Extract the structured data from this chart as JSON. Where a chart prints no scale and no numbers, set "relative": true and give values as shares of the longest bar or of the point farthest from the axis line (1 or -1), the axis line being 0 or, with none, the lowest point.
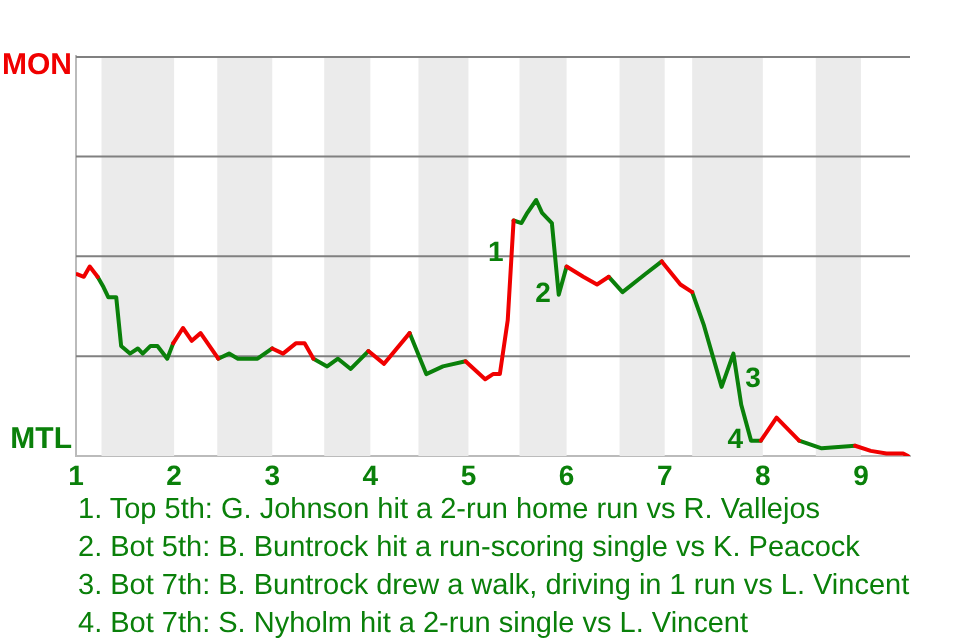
{
  "chart_data": {
    "type": "line",
    "relative": true,
    "xlim": [
      1,
      9.5
    ],
    "xticks": [
      1,
      2,
      3,
      4,
      5,
      6,
      7,
      8,
      9
    ],
    "marker": "none",
    "line_style": "solid",
    "ref_lines": [
      {
        "axis": "y",
        "value": 0.39,
        "color": "#808080"
      },
      {
        "axis": "y",
        "value": 0.78,
        "color": "#808080"
      },
      {
        "axis": "y",
        "value": 1.17,
        "color": "#808080"
      }
    ],
    "bands": [
      {
        "axis": "x",
        "from": 1.26,
        "to": 2,
        "color": "#ebebeb"
      },
      {
        "axis": "x",
        "from": 2.44,
        "to": 3,
        "color": "#ebebeb"
      },
      {
        "axis": "x",
        "from": 3.53,
        "to": 4,
        "color": "#ebebeb"
      },
      {
        "axis": "x",
        "from": 4.49,
        "to": 5,
        "color": "#ebebeb"
      },
      {
        "axis": "x",
        "from": 5.52,
        "to": 6,
        "color": "#ebebeb"
      },
      {
        "axis": "x",
        "from": 6.54,
        "to": 7,
        "color": "#ebebeb"
      },
      {
        "axis": "x",
        "from": 7.28,
        "to": 8,
        "color": "#ebebeb"
      },
      {
        "axis": "x",
        "from": 8.54,
        "to": 9,
        "color": "#ebebeb"
      }
    ],
    "series": [
      {
        "x": [
          1.01,
          1.08,
          1.14,
          1.22,
          1.28,
          1.33,
          1.41,
          1.46,
          1.55,
          1.63,
          1.68,
          1.76,
          1.83,
          1.93,
          1.99,
          2.09,
          2.18,
          2.27,
          2.45,
          2.56,
          2.65,
          2.85,
          3.0,
          3.11,
          3.24,
          3.33,
          3.42,
          3.56,
          3.67,
          3.8,
          3.98,
          4.14,
          4.4,
          4.57,
          4.74,
          4.97,
          5.17,
          5.25,
          5.32,
          5.4,
          5.46,
          5.54,
          5.6,
          5.69,
          5.75,
          5.85,
          5.92,
          6.0,
          6.17,
          6.31,
          6.43,
          6.57,
          6.8,
          6.97,
          7.16,
          7.28,
          7.4,
          7.58,
          7.7,
          7.78,
          7.88,
          7.98,
          8.14,
          8.37,
          8.6,
          8.94,
          9.1,
          9.26,
          9.43,
          9.48
        ],
        "color": "#f00000",
        "values": [
          0.71,
          0.7,
          0.74,
          0.7,
          null,
          null,
          null,
          null,
          null,
          null,
          null,
          null,
          null,
          null,
          0.44,
          0.5,
          0.45,
          0.48,
          0.38,
          null,
          null,
          null,
          0.42,
          0.4,
          0.44,
          0.44,
          0.38,
          null,
          null,
          null,
          0.41,
          0.36,
          0.48,
          null,
          null,
          0.37,
          0.3,
          0.32,
          0.32,
          0.53,
          0.92,
          null,
          null,
          null,
          null,
          null,
          null,
          0.74,
          0.7,
          0.67,
          0.7,
          null,
          null,
          0.76,
          0.67,
          0.64,
          null,
          null,
          null,
          null,
          null,
          0.06,
          0.15,
          0.06,
          null,
          0.04,
          0.02,
          0.01,
          0.01,
          0
        ]
      },
      {
        "x": [
          1.22,
          1.28,
          1.33,
          1.41,
          1.46,
          1.55,
          1.63,
          1.68,
          1.76,
          1.83,
          1.93,
          1.99,
          2.09,
          2.18,
          2.27,
          2.45,
          2.56,
          2.65,
          2.85,
          3.0,
          3.11,
          3.24,
          3.33,
          3.42,
          3.56,
          3.67,
          3.8,
          3.98,
          4.14,
          4.4,
          4.57,
          4.74,
          4.97,
          5.17,
          5.25,
          5.32,
          5.4,
          5.46,
          5.54,
          5.6,
          5.69,
          5.75,
          5.85,
          5.92,
          6.0,
          6.17,
          6.31,
          6.43,
          6.57,
          6.8,
          6.97,
          7.16,
          7.28,
          7.4,
          7.58,
          7.7,
          7.78,
          7.88,
          7.98,
          8.14,
          8.37,
          8.6,
          8.94
        ],
        "color": "#0a800a",
        "values": [
          0.7,
          0.66,
          0.62,
          0.62,
          0.43,
          0.4,
          0.42,
          0.4,
          0.43,
          0.43,
          0.38,
          0.44,
          null,
          null,
          null,
          0.38,
          0.4,
          0.38,
          0.38,
          0.42,
          null,
          null,
          null,
          0.38,
          0.35,
          0.38,
          0.34,
          0.41,
          null,
          0.48,
          0.32,
          0.35,
          0.37,
          null,
          null,
          null,
          null,
          0.92,
          0.91,
          0.95,
          1,
          0.95,
          0.91,
          0.63,
          0.74,
          null,
          null,
          0.7,
          0.64,
          0.71,
          0.76,
          null,
          0.64,
          0.51,
          0.27,
          0.4,
          0.2,
          0.06,
          0.06,
          null,
          0.06,
          0.03,
          0.04
        ]
      }
    ],
    "annotations": [
      "MON",
      "MTL",
      {
        "text": "1",
        "x": 5.44,
        "y": 0.79
      },
      {
        "text": "2",
        "x": 5.92,
        "y": 0.63
      },
      {
        "text": "3",
        "x": 7.74,
        "y": 0.3
      },
      {
        "text": "4",
        "x": 7.88,
        "y": 0.06
      },
      "1. Top 5th: G. Johnson hit a 2-run home run vs R. Vallejos",
      "2. Bot 5th: B. Buntrock hit a run-scoring single vs K. Peacock",
      "3. Bot 7th: B. Buntrock drew a walk, driving in 1 run vs L. Vincent",
      "4. Bot 7th: S. Nyholm hit a 2-run single vs L. Vincent"
    ]
  }
}
